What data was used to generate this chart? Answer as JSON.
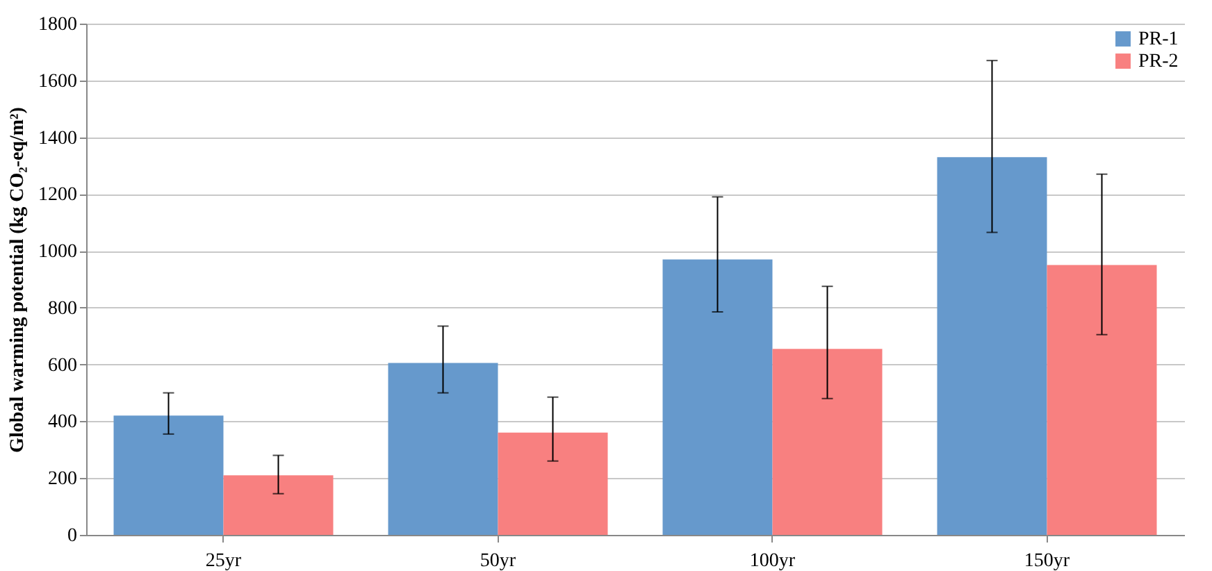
{
  "chart_data": {
    "type": "bar",
    "ylabel": "Global warming potential (kg CO₂-eq/m²)",
    "categories": [
      "25yr",
      "50yr",
      "100yr",
      "150yr"
    ],
    "series": [
      {
        "name": "PR-1",
        "color": "#6699cc",
        "values": [
          420,
          605,
          970,
          1330
        ],
        "errors": [
          [
            355,
            500
          ],
          [
            500,
            735
          ],
          [
            785,
            1190
          ],
          [
            1065,
            1670
          ]
        ]
      },
      {
        "name": "PR-2",
        "color": "#f88080",
        "values": [
          210,
          360,
          655,
          950
        ],
        "errors": [
          [
            145,
            280
          ],
          [
            260,
            485
          ],
          [
            480,
            875
          ],
          [
            705,
            1270
          ]
        ]
      }
    ],
    "ylim": [
      0,
      1800
    ],
    "yticks": [
      0,
      200,
      400,
      600,
      800,
      1000,
      1200,
      1400,
      1600,
      1800
    ],
    "grid": "y",
    "legend": "top right"
  }
}
